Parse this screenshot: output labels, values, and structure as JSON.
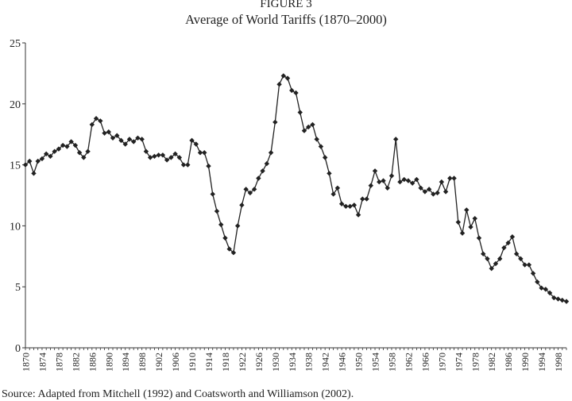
{
  "figure": {
    "label": "FIGURE 3",
    "title": "Average of World Tariffs (1870–2000)",
    "source": "Source: Adapted from Mitchell (1992) and Coatsworth and Williamson (2002)."
  },
  "chart_data": {
    "type": "line",
    "title": "Average of World Tariffs (1870–2000)",
    "xlabel": "",
    "ylabel": "",
    "ylim": [
      0,
      25
    ],
    "xlim": [
      1870,
      2000
    ],
    "yticks": [
      0,
      5,
      10,
      15,
      20,
      25
    ],
    "xtick_labels": [
      "1870",
      "1874",
      "1878",
      "1882",
      "1886",
      "1890",
      "1894",
      "1898",
      "1902",
      "1906",
      "1910",
      "1914",
      "1918",
      "1922",
      "1926",
      "1930",
      "1934",
      "1938",
      "1942",
      "1946",
      "1950",
      "1954",
      "1958",
      "1962",
      "1966",
      "1970",
      "1974",
      "1978",
      "1982",
      "1986",
      "1990",
      "1994",
      "1998"
    ],
    "grid": false,
    "legend": "none",
    "series": [
      {
        "marker": "diamond",
        "color": "#222222",
        "x": [
          1870,
          1871,
          1872,
          1873,
          1874,
          1875,
          1876,
          1877,
          1878,
          1879,
          1880,
          1881,
          1882,
          1883,
          1884,
          1885,
          1886,
          1887,
          1888,
          1889,
          1890,
          1891,
          1892,
          1893,
          1894,
          1895,
          1896,
          1897,
          1898,
          1899,
          1900,
          1901,
          1902,
          1903,
          1904,
          1905,
          1906,
          1907,
          1908,
          1909,
          1910,
          1911,
          1912,
          1913,
          1914,
          1915,
          1916,
          1917,
          1918,
          1919,
          1920,
          1921,
          1922,
          1923,
          1924,
          1925,
          1926,
          1927,
          1928,
          1929,
          1930,
          1931,
          1932,
          1933,
          1934,
          1935,
          1936,
          1937,
          1938,
          1939,
          1940,
          1941,
          1942,
          1943,
          1944,
          1945,
          1946,
          1947,
          1948,
          1949,
          1950,
          1951,
          1952,
          1953,
          1954,
          1955,
          1956,
          1957,
          1958,
          1959,
          1960,
          1961,
          1962,
          1963,
          1964,
          1965,
          1966,
          1967,
          1968,
          1969,
          1970,
          1971,
          1972,
          1973,
          1974,
          1975,
          1976,
          1977,
          1978,
          1979,
          1980,
          1981,
          1982,
          1983,
          1984,
          1985,
          1986,
          1987,
          1988,
          1989,
          1990,
          1991,
          1992,
          1993,
          1994,
          1995,
          1996,
          1997,
          1998,
          1999,
          2000
        ],
        "y": [
          15.0,
          15.3,
          14.3,
          15.3,
          15.5,
          15.9,
          15.7,
          16.1,
          16.3,
          16.6,
          16.5,
          16.9,
          16.6,
          16.0,
          15.6,
          16.1,
          18.3,
          18.8,
          18.6,
          17.6,
          17.7,
          17.2,
          17.4,
          17.0,
          16.7,
          17.1,
          16.9,
          17.2,
          17.1,
          16.1,
          15.6,
          15.7,
          15.8,
          15.8,
          15.4,
          15.6,
          15.9,
          15.6,
          15.0,
          15.0,
          17.0,
          16.7,
          16.0,
          16.0,
          14.9,
          12.6,
          11.2,
          10.1,
          9.0,
          8.1,
          7.8,
          10.0,
          11.7,
          13.0,
          12.7,
          13.0,
          13.9,
          14.5,
          15.1,
          16.0,
          18.5,
          21.6,
          22.3,
          22.1,
          21.1,
          20.9,
          19.3,
          17.8,
          18.1,
          18.3,
          17.1,
          16.5,
          15.6,
          14.3,
          12.6,
          13.1,
          11.8,
          11.6,
          11.6,
          11.7,
          10.9,
          12.2,
          12.2,
          13.3,
          14.5,
          13.6,
          13.7,
          13.1,
          14.1,
          17.1,
          13.6,
          13.8,
          13.7,
          13.5,
          13.8,
          13.1,
          12.8,
          13.0,
          12.6,
          12.7,
          13.6,
          12.8,
          13.9,
          13.9,
          10.3,
          9.4,
          11.3,
          9.9,
          10.6,
          9.0,
          7.7,
          7.3,
          6.5,
          6.9,
          7.3,
          8.2,
          8.6,
          9.1,
          7.7,
          7.3,
          6.8,
          6.8,
          6.1,
          5.4,
          4.9,
          4.8,
          4.5,
          4.1,
          4.0,
          3.9,
          3.8
        ]
      }
    ]
  }
}
